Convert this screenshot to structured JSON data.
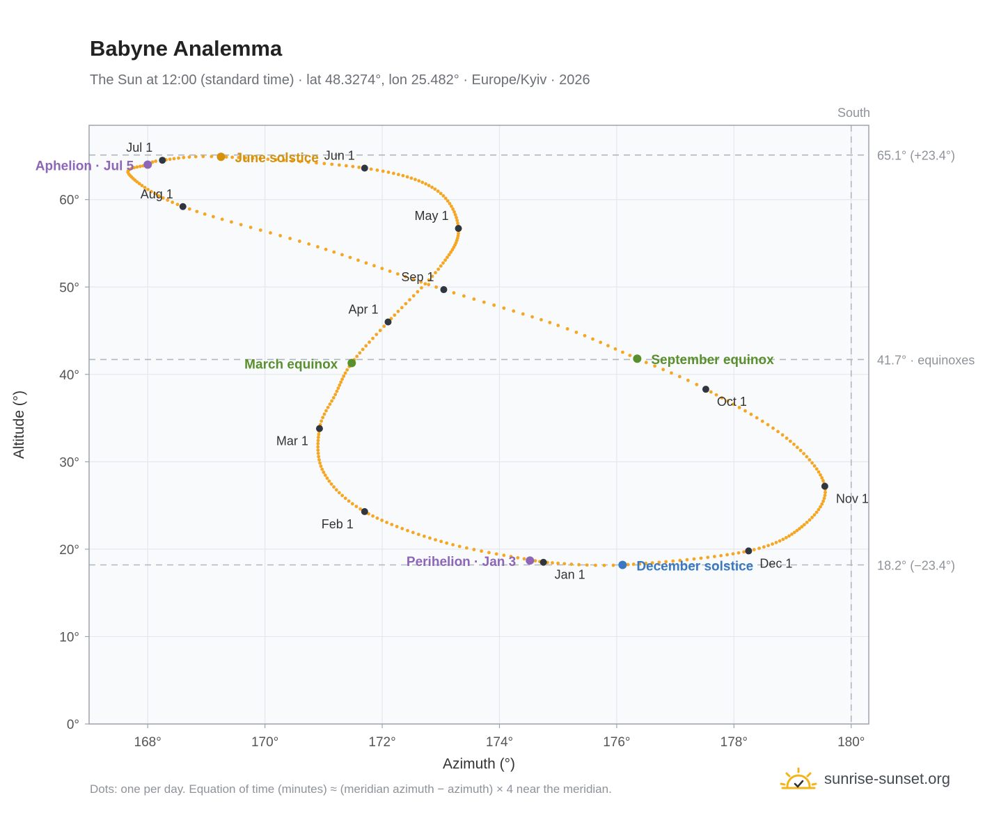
{
  "page": {
    "title": "Babyne Analemma",
    "subtitle": "The Sun at 12:00 (standard time) · lat 48.3274°, lon 25.482° · Europe/Kyiv · 2026",
    "footnote": "Dots: one per day. Equation of time (minutes) ≈ (meridian azimuth − azimuth) × 4 near the meridian.",
    "brand": "sunrise-sunset.org"
  },
  "colors": {
    "track": "#f5a623",
    "month": "#2f3640",
    "equinox": "#5a8f2e",
    "june_solstice": "#d4910c",
    "december_solstice": "#3a78c2",
    "apsis": "#8e66b8",
    "grid": "#e3e8ee",
    "plot_bg": "#f8fafc",
    "ref_line": "#aeb6bf",
    "axis": "#9aa4b0",
    "brand_sun": "#f2b418"
  },
  "chart_data": {
    "type": "scatter",
    "xlabel": "Azimuth (°)",
    "ylabel": "Altitude (°)",
    "xlim": [
      167,
      180.3
    ],
    "ylim": [
      0,
      68.5
    ],
    "x_ticks": [
      168,
      170,
      172,
      174,
      176,
      178,
      180
    ],
    "x_tick_labels": [
      "168°",
      "170°",
      "172°",
      "174°",
      "176°",
      "178°",
      "180°"
    ],
    "y_ticks": [
      0,
      10,
      20,
      30,
      40,
      50,
      60
    ],
    "y_tick_labels": [
      "0°",
      "10°",
      "20°",
      "30°",
      "40°",
      "50°",
      "60°"
    ],
    "grid": true,
    "meridian": {
      "azimuth": 180,
      "label": "South"
    },
    "reference_lines": [
      {
        "altitude": 65.1,
        "label": "65.1° (+23.4°)"
      },
      {
        "altitude": 41.7,
        "label": "41.7° · equinoxes"
      },
      {
        "altitude": 18.2,
        "label": "18.2° (−23.4°)"
      }
    ],
    "track_points": [
      {
        "doy": 0,
        "az": 174.75,
        "alt": 18.5
      },
      {
        "doy": 15,
        "az": 173.1,
        "alt": 20.7
      },
      {
        "doy": 31,
        "az": 171.7,
        "alt": 24.3
      },
      {
        "doy": 45,
        "az": 171.0,
        "alt": 28.8
      },
      {
        "doy": 59,
        "az": 170.93,
        "alt": 33.8
      },
      {
        "doy": 69,
        "az": 171.2,
        "alt": 37.7
      },
      {
        "doy": 79,
        "az": 171.48,
        "alt": 41.3
      },
      {
        "doy": 90,
        "az": 172.1,
        "alt": 46.0
      },
      {
        "doy": 105,
        "az": 173.0,
        "alt": 52.4
      },
      {
        "doy": 120,
        "az": 173.3,
        "alt": 56.7
      },
      {
        "doy": 135,
        "az": 172.9,
        "alt": 61.2
      },
      {
        "doy": 151,
        "az": 171.7,
        "alt": 63.6
      },
      {
        "doy": 171,
        "az": 169.25,
        "alt": 64.9
      },
      {
        "doy": 181,
        "az": 168.25,
        "alt": 64.5
      },
      {
        "doy": 185,
        "az": 168.0,
        "alt": 64.0
      },
      {
        "doy": 195,
        "az": 167.68,
        "alt": 62.9
      },
      {
        "doy": 212,
        "az": 168.6,
        "alt": 59.2
      },
      {
        "doy": 227,
        "az": 170.9,
        "alt": 54.6
      },
      {
        "doy": 243,
        "az": 173.05,
        "alt": 49.7
      },
      {
        "doy": 255,
        "az": 175.0,
        "alt": 45.6
      },
      {
        "doy": 265,
        "az": 176.35,
        "alt": 41.8
      },
      {
        "doy": 273,
        "az": 177.52,
        "alt": 38.3
      },
      {
        "doy": 288,
        "az": 178.9,
        "alt": 32.7
      },
      {
        "doy": 304,
        "az": 179.55,
        "alt": 27.2
      },
      {
        "doy": 318,
        "az": 179.2,
        "alt": 22.8
      },
      {
        "doy": 334,
        "az": 178.25,
        "alt": 19.8
      },
      {
        "doy": 354,
        "az": 176.1,
        "alt": 18.2
      },
      {
        "doy": 365,
        "az": 174.75,
        "alt": 18.5
      }
    ],
    "month_markers": [
      {
        "label": "Jan 1",
        "az": 174.75,
        "alt": 18.5,
        "pos": "below-right"
      },
      {
        "label": "Feb 1",
        "az": 171.7,
        "alt": 24.3,
        "pos": "below-left"
      },
      {
        "label": "Mar 1",
        "az": 170.93,
        "alt": 33.8,
        "pos": "below-left"
      },
      {
        "label": "Apr 1",
        "az": 172.1,
        "alt": 46.0,
        "pos": "above-left"
      },
      {
        "label": "May 1",
        "az": 173.3,
        "alt": 56.7,
        "pos": "above-left"
      },
      {
        "label": "Jun 1",
        "az": 171.7,
        "alt": 63.6,
        "pos": "above-left"
      },
      {
        "label": "Jul 1",
        "az": 168.25,
        "alt": 64.5,
        "pos": "above-left"
      },
      {
        "label": "Aug 1",
        "az": 168.6,
        "alt": 59.2,
        "pos": "above-left"
      },
      {
        "label": "Sep 1",
        "az": 173.05,
        "alt": 49.7,
        "pos": "above-left"
      },
      {
        "label": "Oct 1",
        "az": 177.52,
        "alt": 38.3,
        "pos": "below-right"
      },
      {
        "label": "Nov 1",
        "az": 179.55,
        "alt": 27.2,
        "pos": "below-right"
      },
      {
        "label": "Dec 1",
        "az": 178.25,
        "alt": 19.8,
        "pos": "below-right"
      }
    ],
    "events": [
      {
        "label": "March equinox",
        "az": 171.48,
        "alt": 41.3,
        "color_key": "equinox",
        "side": "left"
      },
      {
        "label": "June solstice",
        "az": 169.25,
        "alt": 64.9,
        "color_key": "june_solstice",
        "side": "right"
      },
      {
        "label": "September equinox",
        "az": 176.35,
        "alt": 41.8,
        "color_key": "equinox",
        "side": "right"
      },
      {
        "label": "December solstice",
        "az": 176.1,
        "alt": 18.2,
        "color_key": "december_solstice",
        "side": "right"
      },
      {
        "label": "Aphelion · Jul 5",
        "az": 168.0,
        "alt": 64.0,
        "color_key": "apsis",
        "side": "left"
      },
      {
        "label": "Perihelion · Jan 3",
        "az": 174.52,
        "alt": 18.7,
        "color_key": "apsis",
        "side": "left"
      }
    ]
  }
}
